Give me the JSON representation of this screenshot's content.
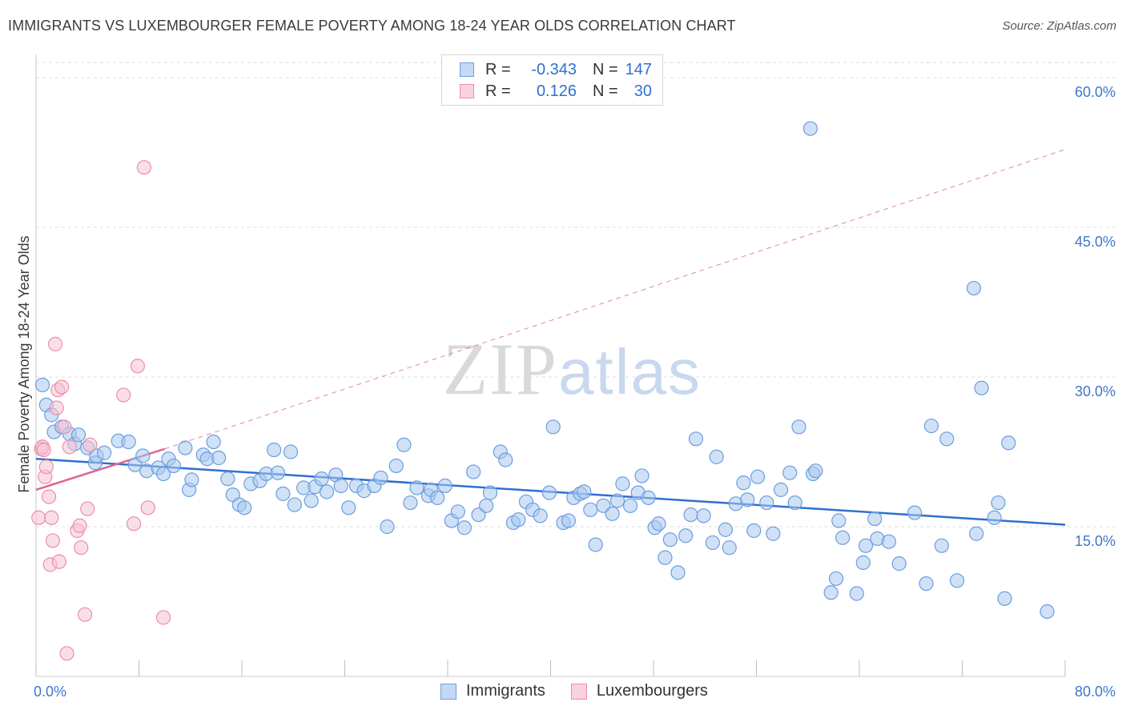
{
  "title": "IMMIGRANTS VS LUXEMBOURGER FEMALE POVERTY AMONG 18-24 YEAR OLDS CORRELATION CHART",
  "source": "Source: ZipAtlas.com",
  "watermark": {
    "zip": "ZIP",
    "atlas": "atlas"
  },
  "legend": {
    "rows": [
      {
        "r_label": "R =",
        "r_value": "-0.343",
        "n_label": "N =",
        "n_value": "147",
        "color": "#aac8ef"
      },
      {
        "r_label": "R =",
        "r_value": "0.126",
        "n_label": "N =",
        "n_value": "30",
        "color": "#f6b8c8"
      }
    ]
  },
  "bottom_legend": {
    "immigrants": "Immigrants",
    "luxembourgers": "Luxembourgers"
  },
  "colors": {
    "blue_fill": "#aac8ef",
    "blue_stroke": "#6b9de0",
    "blue_line": "#2f6fd0",
    "pink_fill": "#f6c2d1",
    "pink_stroke": "#ea8fab",
    "pink_line": "#e0668f",
    "tick_color": "#3d78c9",
    "grid": "#dcdcdc"
  },
  "chart_data": {
    "type": "scatter",
    "title": "IMMIGRANTS VS LUXEMBOURGER FEMALE POVERTY AMONG 18-24 YEAR OLDS CORRELATION CHART",
    "xlabel": "",
    "ylabel": "Female Poverty Among 18-24 Year Olds",
    "xlim": [
      0,
      80
    ],
    "ylim": [
      0,
      60
    ],
    "x_ticks": [
      "0.0%",
      "80.0%"
    ],
    "y_ticks": [
      {
        "value": 15,
        "label": "15.0%"
      },
      {
        "value": 30,
        "label": "30.0%"
      },
      {
        "value": 45,
        "label": "45.0%"
      },
      {
        "value": 60,
        "label": "60.0%"
      }
    ],
    "grid": true,
    "legend_position": "top-center",
    "series": [
      {
        "name": "Immigrants",
        "color": "#aac8ef",
        "trend": {
          "x": [
            0,
            80
          ],
          "y": [
            21.8,
            15.2
          ],
          "style": "solid"
        },
        "points": [
          [
            0.5,
            29.2
          ],
          [
            0.8,
            27.2
          ],
          [
            1.2,
            26.2
          ],
          [
            1.4,
            24.5
          ],
          [
            2.0,
            25.0
          ],
          [
            2.6,
            24.3
          ],
          [
            3.0,
            23.3
          ],
          [
            3.3,
            24.2
          ],
          [
            4.0,
            22.9
          ],
          [
            4.6,
            21.4
          ],
          [
            4.7,
            22.1
          ],
          [
            5.3,
            22.4
          ],
          [
            6.4,
            23.6
          ],
          [
            7.2,
            23.5
          ],
          [
            7.7,
            21.2
          ],
          [
            8.3,
            22.1
          ],
          [
            8.6,
            20.6
          ],
          [
            9.5,
            20.9
          ],
          [
            9.9,
            20.3
          ],
          [
            10.3,
            21.8
          ],
          [
            10.7,
            21.1
          ],
          [
            11.6,
            22.9
          ],
          [
            11.9,
            18.7
          ],
          [
            12.1,
            19.7
          ],
          [
            13.0,
            22.2
          ],
          [
            13.3,
            21.8
          ],
          [
            13.8,
            23.5
          ],
          [
            14.2,
            21.9
          ],
          [
            14.9,
            19.8
          ],
          [
            15.3,
            18.2
          ],
          [
            15.8,
            17.2
          ],
          [
            16.2,
            16.9
          ],
          [
            16.7,
            19.3
          ],
          [
            17.4,
            19.6
          ],
          [
            17.9,
            20.3
          ],
          [
            18.5,
            22.7
          ],
          [
            18.8,
            20.4
          ],
          [
            19.2,
            18.3
          ],
          [
            19.8,
            22.5
          ],
          [
            20.1,
            17.2
          ],
          [
            20.8,
            18.9
          ],
          [
            21.4,
            17.6
          ],
          [
            21.7,
            19.0
          ],
          [
            22.2,
            19.8
          ],
          [
            22.6,
            18.5
          ],
          [
            23.3,
            20.2
          ],
          [
            23.7,
            19.1
          ],
          [
            24.3,
            16.9
          ],
          [
            24.9,
            19.1
          ],
          [
            25.5,
            18.6
          ],
          [
            26.3,
            19.1
          ],
          [
            26.8,
            19.9
          ],
          [
            27.3,
            15.0
          ],
          [
            28.0,
            21.1
          ],
          [
            28.6,
            23.2
          ],
          [
            29.1,
            17.4
          ],
          [
            29.6,
            18.9
          ],
          [
            30.5,
            18.1
          ],
          [
            30.7,
            18.7
          ],
          [
            31.2,
            17.9
          ],
          [
            31.8,
            19.1
          ],
          [
            32.3,
            15.6
          ],
          [
            32.8,
            16.5
          ],
          [
            33.3,
            14.9
          ],
          [
            34.0,
            20.5
          ],
          [
            34.4,
            16.2
          ],
          [
            35.0,
            17.1
          ],
          [
            35.3,
            18.4
          ],
          [
            36.1,
            22.5
          ],
          [
            36.5,
            21.7
          ],
          [
            37.1,
            15.4
          ],
          [
            37.5,
            15.7
          ],
          [
            38.1,
            17.5
          ],
          [
            38.6,
            16.7
          ],
          [
            39.2,
            16.1
          ],
          [
            39.9,
            18.4
          ],
          [
            40.2,
            25.0
          ],
          [
            41.0,
            15.4
          ],
          [
            41.4,
            15.6
          ],
          [
            41.8,
            17.9
          ],
          [
            42.3,
            18.3
          ],
          [
            42.6,
            18.5
          ],
          [
            43.1,
            16.7
          ],
          [
            43.5,
            13.2
          ],
          [
            44.1,
            17.1
          ],
          [
            44.8,
            16.3
          ],
          [
            45.2,
            17.6
          ],
          [
            45.6,
            19.3
          ],
          [
            46.2,
            17.1
          ],
          [
            46.8,
            18.4
          ],
          [
            47.1,
            20.1
          ],
          [
            47.6,
            17.9
          ],
          [
            48.1,
            14.9
          ],
          [
            48.4,
            15.3
          ],
          [
            48.9,
            11.9
          ],
          [
            49.3,
            13.7
          ],
          [
            49.9,
            10.4
          ],
          [
            50.5,
            14.1
          ],
          [
            50.9,
            16.2
          ],
          [
            51.3,
            23.8
          ],
          [
            51.9,
            16.1
          ],
          [
            52.6,
            13.4
          ],
          [
            52.9,
            22.0
          ],
          [
            53.6,
            14.7
          ],
          [
            53.9,
            12.9
          ],
          [
            54.4,
            17.3
          ],
          [
            55.0,
            19.4
          ],
          [
            55.3,
            17.7
          ],
          [
            55.8,
            14.6
          ],
          [
            56.1,
            20.0
          ],
          [
            56.8,
            17.4
          ],
          [
            57.3,
            14.3
          ],
          [
            57.9,
            18.7
          ],
          [
            58.6,
            20.4
          ],
          [
            59.0,
            17.4
          ],
          [
            59.3,
            25.0
          ],
          [
            60.2,
            54.9
          ],
          [
            60.4,
            20.3
          ],
          [
            60.6,
            20.6
          ],
          [
            61.8,
            8.4
          ],
          [
            62.2,
            9.8
          ],
          [
            62.4,
            15.6
          ],
          [
            62.7,
            13.9
          ],
          [
            63.8,
            8.3
          ],
          [
            64.3,
            11.4
          ],
          [
            64.5,
            13.1
          ],
          [
            65.2,
            15.8
          ],
          [
            65.4,
            13.8
          ],
          [
            66.3,
            13.5
          ],
          [
            67.1,
            11.3
          ],
          [
            68.3,
            16.4
          ],
          [
            69.2,
            9.3
          ],
          [
            69.6,
            25.1
          ],
          [
            70.4,
            13.1
          ],
          [
            70.8,
            23.8
          ],
          [
            71.6,
            9.6
          ],
          [
            72.9,
            38.9
          ],
          [
            73.1,
            14.3
          ],
          [
            73.5,
            28.9
          ],
          [
            74.5,
            15.9
          ],
          [
            74.8,
            17.4
          ],
          [
            75.3,
            7.8
          ],
          [
            75.6,
            23.4
          ],
          [
            78.6,
            6.5
          ]
        ]
      },
      {
        "name": "Luxembourgers",
        "color": "#f6b8c8",
        "trend": {
          "x": [
            0,
            10
          ],
          "y": [
            18.7,
            22.8
          ],
          "style": "solid",
          "extension": {
            "x": [
              10,
              80
            ],
            "y": [
              22.8,
              52.8
            ],
            "style": "dashed"
          }
        },
        "points": [
          [
            0.2,
            15.9
          ],
          [
            0.4,
            22.8
          ],
          [
            0.5,
            23.0
          ],
          [
            0.6,
            22.7
          ],
          [
            0.7,
            20.0
          ],
          [
            0.8,
            21.0
          ],
          [
            1.0,
            18.0
          ],
          [
            1.1,
            11.2
          ],
          [
            1.2,
            15.9
          ],
          [
            1.3,
            13.6
          ],
          [
            1.5,
            33.3
          ],
          [
            1.6,
            26.9
          ],
          [
            1.7,
            28.7
          ],
          [
            1.8,
            11.5
          ],
          [
            2.0,
            29.0
          ],
          [
            2.2,
            25.0
          ],
          [
            2.4,
            2.3
          ],
          [
            2.6,
            23.0
          ],
          [
            3.2,
            14.6
          ],
          [
            3.4,
            15.1
          ],
          [
            3.5,
            12.9
          ],
          [
            3.8,
            6.2
          ],
          [
            4.0,
            16.8
          ],
          [
            4.2,
            23.2
          ],
          [
            6.8,
            28.2
          ],
          [
            7.6,
            15.3
          ],
          [
            7.9,
            31.1
          ],
          [
            8.4,
            51.0
          ],
          [
            8.7,
            16.9
          ],
          [
            9.9,
            5.9
          ]
        ]
      }
    ]
  }
}
